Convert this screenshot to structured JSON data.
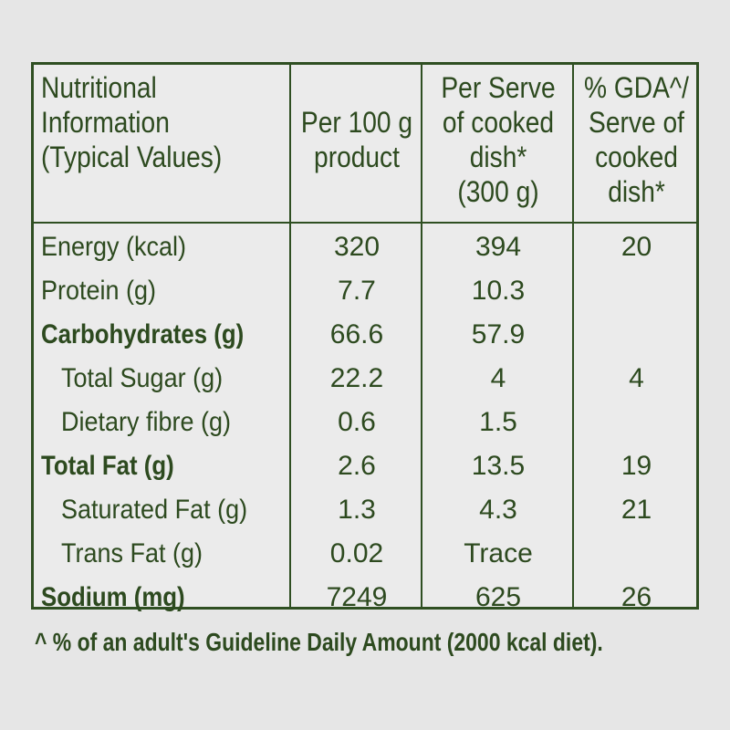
{
  "table": {
    "headers": [
      "Nutritional\nInformation\n(Typical Values)",
      "Per 100 g\nproduct",
      "Per Serve\nof cooked\ndish*\n(300 g)",
      "% GDA^/\nServe of\ncooked\ndish*"
    ],
    "rows": [
      {
        "label": "Energy (kcal)",
        "per100": "320",
        "perServe": "394",
        "gda": "20",
        "bold": false,
        "indent": false
      },
      {
        "label": "Protein (g)",
        "per100": "7.7",
        "perServe": "10.3",
        "gda": "",
        "bold": false,
        "indent": false
      },
      {
        "label": "Carbohydrates (g)",
        "per100": "66.6",
        "perServe": "57.9",
        "gda": "",
        "bold": true,
        "indent": false
      },
      {
        "label": "Total Sugar (g)",
        "per100": "22.2",
        "perServe": "4",
        "gda": "4",
        "bold": false,
        "indent": true
      },
      {
        "label": "Dietary fibre (g)",
        "per100": "0.6",
        "perServe": "1.5",
        "gda": "",
        "bold": false,
        "indent": true
      },
      {
        "label": "Total Fat (g)",
        "per100": "2.6",
        "perServe": "13.5",
        "gda": "19",
        "bold": true,
        "indent": false
      },
      {
        "label": "Saturated Fat (g)",
        "per100": "1.3",
        "perServe": "4.3",
        "gda": "21",
        "bold": false,
        "indent": true
      },
      {
        "label": "Trans Fat (g)",
        "per100": "0.02",
        "perServe": "Trace",
        "gda": "",
        "bold": false,
        "indent": true
      },
      {
        "label": "Sodium (mg)",
        "per100": "7249",
        "perServe": "625",
        "gda": "26",
        "bold": true,
        "indent": false
      }
    ]
  },
  "footnote": "^ % of an adult's Guideline Daily Amount (2000 kcal diet).",
  "colors": {
    "text": "#2d4a1f",
    "border": "#2f4f22",
    "background": "#e6e6e6"
  }
}
